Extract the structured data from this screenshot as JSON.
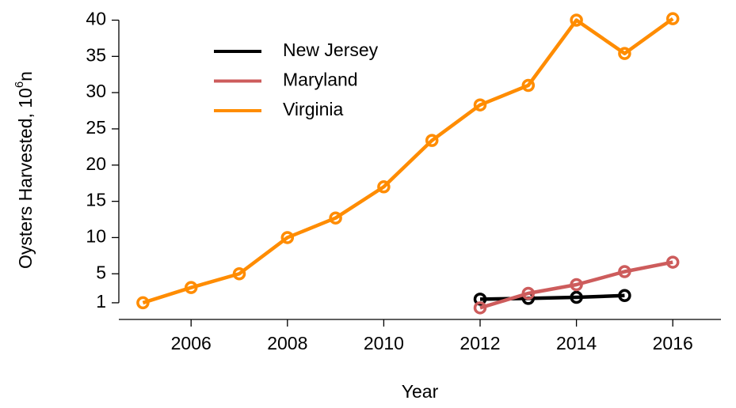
{
  "chart_data": {
    "type": "line",
    "xlabel": "Year",
    "ylabel": {
      "text": "Oysters Harvested, 10",
      "superscript": "6",
      "suffix": "n"
    },
    "x": [
      2005,
      2006,
      2007,
      2008,
      2009,
      2010,
      2011,
      2012,
      2013,
      2014,
      2015,
      2016
    ],
    "series": [
      {
        "name": "New Jersey",
        "color": "#000000",
        "values": [
          null,
          null,
          null,
          null,
          null,
          null,
          null,
          1.5,
          1.6,
          1.75,
          2.0,
          null
        ]
      },
      {
        "name": "Maryland",
        "color": "#cd5c5c",
        "values": [
          null,
          null,
          null,
          null,
          null,
          null,
          null,
          0.3,
          2.3,
          3.5,
          5.3,
          6.6
        ]
      },
      {
        "name": "Virginia",
        "color": "#ff8c00",
        "values": [
          1.0,
          3.1,
          5.0,
          10.0,
          12.7,
          17.0,
          23.4,
          28.3,
          31.0,
          40.0,
          35.4,
          40.2
        ]
      }
    ],
    "xlim": [
      2004.5,
      2017
    ],
    "xticks": [
      2006,
      2008,
      2010,
      2012,
      2014,
      2016
    ],
    "ylim": [
      -1.3,
      41.8
    ],
    "yticks": [
      1,
      5,
      10,
      15,
      20,
      25,
      30,
      35,
      40
    ],
    "legend": "top-left"
  }
}
